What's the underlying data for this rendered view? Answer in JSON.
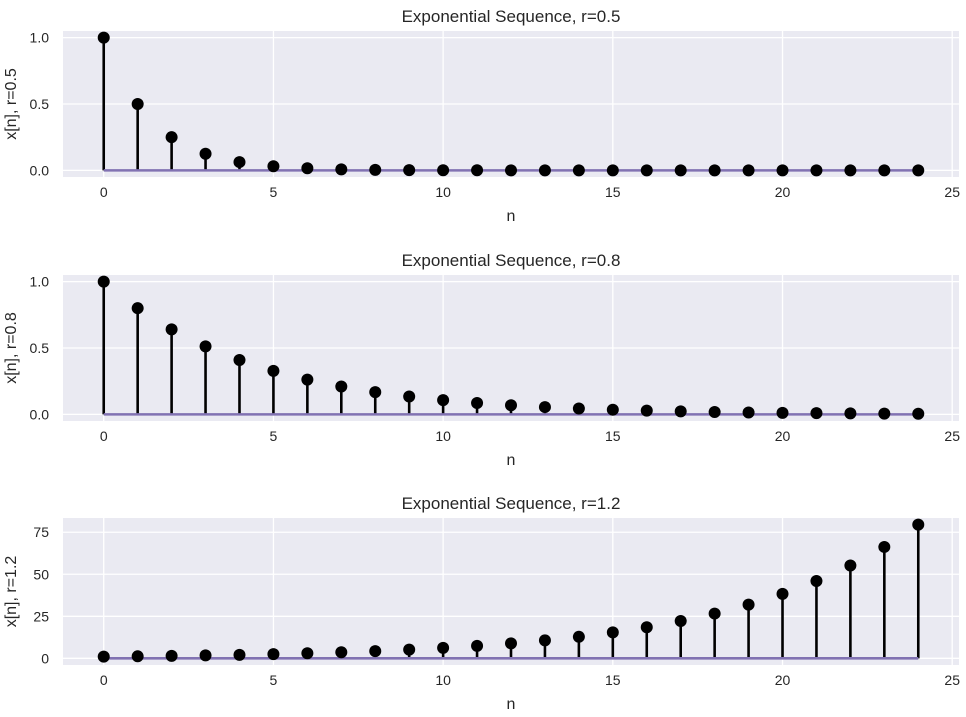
{
  "colors": {
    "background": "#eaeaf2",
    "grid": "#ffffff",
    "stem": "#000000",
    "marker": "#000000",
    "baseline": "#8172b2"
  },
  "chart_data": [
    {
      "type": "stem",
      "title": "Exponential Sequence, r=0.5",
      "xlabel": "n",
      "ylabel": "x[n], r=0.5",
      "xlim": [
        -1.2,
        25.2
      ],
      "ylim": [
        -0.05,
        1.05
      ],
      "xticks": [
        "0",
        "5",
        "10",
        "15",
        "20",
        "25"
      ],
      "yticks": [
        "0.0",
        "0.5",
        "1.0"
      ],
      "grid": true,
      "x": [
        0,
        1,
        2,
        3,
        4,
        5,
        6,
        7,
        8,
        9,
        10,
        11,
        12,
        13,
        14,
        15,
        16,
        17,
        18,
        19,
        20,
        21,
        22,
        23,
        24
      ],
      "values": [
        1,
        0.5,
        0.25,
        0.125,
        0.0625,
        0.0313,
        0.0156,
        0.0078,
        0.0039,
        0.002,
        0.001,
        0.0005,
        0.0002,
        0.0001,
        0.0001,
        0,
        0,
        0,
        0,
        0,
        0,
        0,
        0,
        0,
        0
      ]
    },
    {
      "type": "stem",
      "title": "Exponential Sequence, r=0.8",
      "xlabel": "n",
      "ylabel": "x[n], r=0.8",
      "xlim": [
        -1.2,
        25.2
      ],
      "ylim": [
        -0.05,
        1.05
      ],
      "xticks": [
        "0",
        "5",
        "10",
        "15",
        "20",
        "25"
      ],
      "yticks": [
        "0.0",
        "0.5",
        "1.0"
      ],
      "grid": true,
      "x": [
        0,
        1,
        2,
        3,
        4,
        5,
        6,
        7,
        8,
        9,
        10,
        11,
        12,
        13,
        14,
        15,
        16,
        17,
        18,
        19,
        20,
        21,
        22,
        23,
        24
      ],
      "values": [
        1,
        0.8,
        0.64,
        0.512,
        0.4096,
        0.3277,
        0.2621,
        0.2097,
        0.1678,
        0.1342,
        0.1074,
        0.0859,
        0.0687,
        0.055,
        0.044,
        0.0352,
        0.0281,
        0.0225,
        0.018,
        0.0144,
        0.0115,
        0.0092,
        0.0074,
        0.0059,
        0.0047
      ]
    },
    {
      "type": "stem",
      "title": "Exponential Sequence, r=1.2",
      "xlabel": "n",
      "ylabel": "x[n], r=1.2",
      "xlim": [
        -1.2,
        25.2
      ],
      "ylim": [
        -3.97,
        83.46
      ],
      "xticks": [
        "0",
        "5",
        "10",
        "15",
        "20",
        "25"
      ],
      "yticks": [
        "0",
        "25",
        "50",
        "75"
      ],
      "grid": true,
      "x": [
        0,
        1,
        2,
        3,
        4,
        5,
        6,
        7,
        8,
        9,
        10,
        11,
        12,
        13,
        14,
        15,
        16,
        17,
        18,
        19,
        20,
        21,
        22,
        23,
        24
      ],
      "values": [
        1,
        1.2,
        1.44,
        1.728,
        2.074,
        2.488,
        2.986,
        3.583,
        4.3,
        5.16,
        6.192,
        7.43,
        8.916,
        10.699,
        12.839,
        15.407,
        18.488,
        22.186,
        26.623,
        31.948,
        38.338,
        46.005,
        55.206,
        66.247,
        79.497
      ]
    }
  ]
}
